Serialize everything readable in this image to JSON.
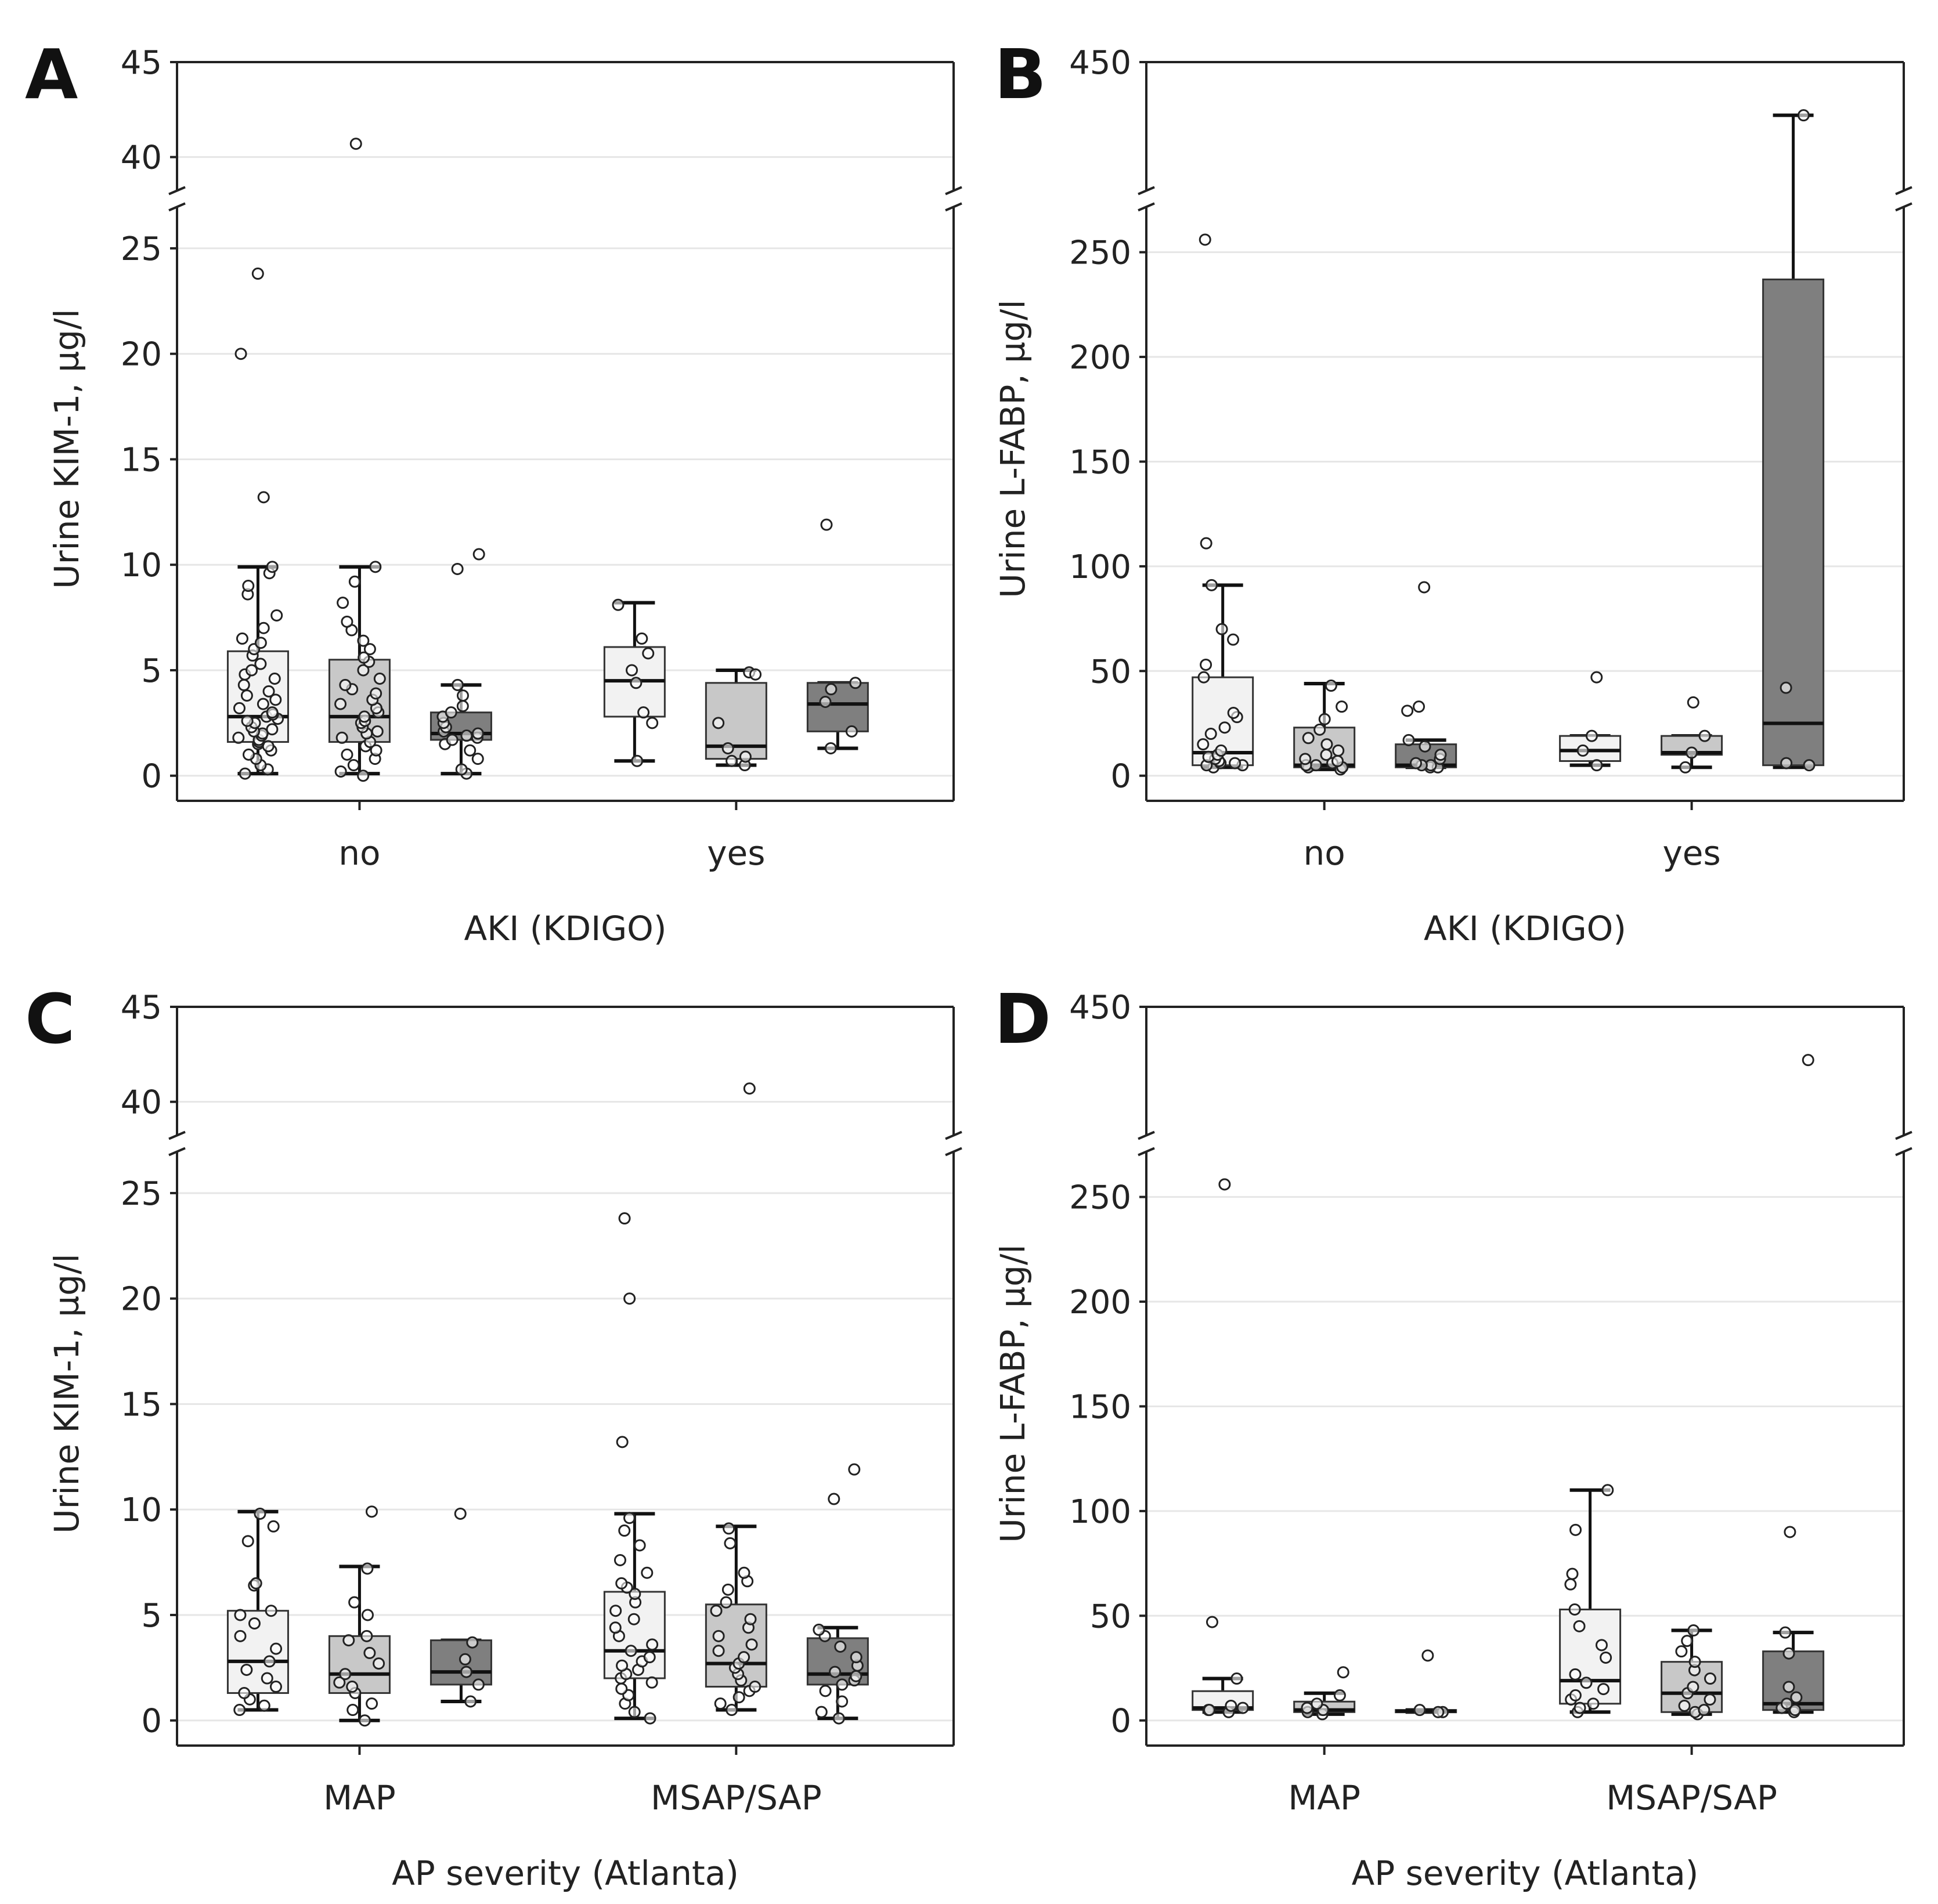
{
  "figure": {
    "panel_letters": [
      "A",
      "B",
      "C",
      "D"
    ]
  },
  "colors": {
    "low_group": "#f2f2f2",
    "mid_group": "#c8c8c8",
    "high_group": "#7f7f7f",
    "axis": "#222222",
    "grid": "#e6e6e6"
  },
  "chart_data": [
    {
      "panel": "A",
      "type": "box",
      "ylabel": "Urine KIM-1, µg/l",
      "xlabel": "AKI (KDIGO)",
      "categories": [
        "no",
        "yes"
      ],
      "axis_break": {
        "lower_max": 27,
        "upper_min": 38,
        "upper_max": 45
      },
      "yticks_lower": [
        0,
        5,
        10,
        15,
        20,
        25
      ],
      "yticks_upper": [
        40,
        45
      ],
      "boxes": [
        {
          "category": "no",
          "group": 0,
          "whisker_low": 0.1,
          "q1": 1.6,
          "median": 2.8,
          "q3": 5.9,
          "whisker_high": 9.9,
          "points": [
            0.1,
            0.3,
            0.5,
            0.8,
            1.0,
            1.2,
            1.4,
            1.5,
            1.6,
            1.7,
            1.8,
            1.9,
            2.0,
            2.1,
            2.2,
            2.3,
            2.5,
            2.6,
            2.7,
            2.8,
            2.9,
            3.0,
            3.2,
            3.4,
            3.6,
            3.8,
            4.0,
            4.3,
            4.6,
            4.8,
            5.0,
            5.3,
            5.7,
            6.0,
            6.3,
            6.5,
            7.0,
            7.6,
            8.6,
            9.0,
            9.6,
            9.9,
            13.2,
            20.0,
            23.8
          ]
        },
        {
          "category": "no",
          "group": 1,
          "whisker_low": 0.1,
          "q1": 1.6,
          "median": 2.8,
          "q3": 5.5,
          "whisker_high": 9.9,
          "points": [
            0.0,
            0.2,
            0.5,
            0.8,
            1.0,
            1.2,
            1.4,
            1.6,
            1.8,
            2.0,
            2.1,
            2.3,
            2.5,
            2.6,
            2.8,
            3.0,
            3.2,
            3.4,
            3.6,
            3.9,
            4.1,
            4.3,
            4.6,
            5.0,
            5.4,
            5.6,
            6.0,
            6.4,
            6.9,
            7.3,
            8.2,
            9.2,
            9.9,
            40.7
          ]
        },
        {
          "category": "no",
          "group": 2,
          "whisker_low": 0.1,
          "q1": 1.7,
          "median": 2.0,
          "q3": 3.0,
          "whisker_high": 4.3,
          "points": [
            0.1,
            0.3,
            0.8,
            1.2,
            1.5,
            1.7,
            1.8,
            1.9,
            2.0,
            2.1,
            2.3,
            2.5,
            2.8,
            3.0,
            3.3,
            3.8,
            4.3,
            9.8,
            10.5
          ]
        },
        {
          "category": "yes",
          "group": 0,
          "whisker_low": 0.7,
          "q1": 2.8,
          "median": 4.5,
          "q3": 6.1,
          "whisker_high": 8.2,
          "points": [
            0.7,
            2.5,
            3.0,
            4.4,
            5.0,
            5.8,
            6.5,
            8.1
          ]
        },
        {
          "category": "yes",
          "group": 1,
          "whisker_low": 0.5,
          "q1": 0.8,
          "median": 1.4,
          "q3": 4.4,
          "whisker_high": 5.0,
          "points": [
            0.5,
            0.7,
            0.9,
            1.3,
            2.5,
            4.9,
            4.8
          ]
        },
        {
          "category": "yes",
          "group": 2,
          "whisker_low": 1.3,
          "q1": 2.1,
          "median": 3.4,
          "q3": 4.4,
          "whisker_high": 4.4,
          "points": [
            1.3,
            2.1,
            3.5,
            4.1,
            4.4,
            11.9
          ]
        }
      ]
    },
    {
      "panel": "B",
      "type": "box",
      "ylabel": "Urine L-FABP, µg/l",
      "xlabel": "AKI (KDIGO)",
      "categories": [
        "no",
        "yes"
      ],
      "axis_break": {
        "lower_max": 272,
        "upper_min": 400,
        "upper_max": 450
      },
      "yticks_lower": [
        0,
        50,
        100,
        150,
        200,
        250
      ],
      "yticks_upper": [
        450
      ],
      "boxes": [
        {
          "category": "no",
          "group": 0,
          "whisker_low": 4,
          "q1": 5,
          "median": 11,
          "q3": 47,
          "whisker_high": 91,
          "points": [
            4,
            5,
            5,
            6,
            6,
            7,
            8,
            9,
            10,
            12,
            15,
            20,
            23,
            28,
            30,
            47,
            53,
            65,
            70,
            91,
            111,
            256
          ]
        },
        {
          "category": "no",
          "group": 1,
          "whisker_low": 3,
          "q1": 4,
          "median": 5,
          "q3": 23,
          "whisker_high": 44,
          "points": [
            3,
            4,
            4,
            5,
            5,
            6,
            7,
            8,
            10,
            12,
            15,
            18,
            22,
            27,
            33,
            43
          ]
        },
        {
          "category": "no",
          "group": 2,
          "whisker_low": 4,
          "q1": 4,
          "median": 5,
          "q3": 15,
          "whisker_high": 17,
          "points": [
            4,
            4,
            5,
            5,
            6,
            8,
            10,
            14,
            17,
            31,
            33,
            90
          ]
        },
        {
          "category": "yes",
          "group": 0,
          "whisker_low": 5,
          "q1": 7,
          "median": 12,
          "q3": 19,
          "whisker_high": 19,
          "points": [
            5,
            12,
            19,
            47
          ]
        },
        {
          "category": "yes",
          "group": 1,
          "whisker_low": 4,
          "q1": 10,
          "median": 11,
          "q3": 19,
          "whisker_high": 19,
          "points": [
            4,
            11,
            19,
            35
          ]
        },
        {
          "category": "yes",
          "group": 2,
          "whisker_low": 4,
          "q1": 5,
          "median": 25,
          "q3": 237,
          "whisker_high": 430,
          "points": [
            5,
            6,
            42,
            430
          ]
        }
      ]
    },
    {
      "panel": "C",
      "type": "box",
      "ylabel": "Urine KIM-1, µg/l",
      "xlabel": "AP severity (Atlanta)",
      "categories": [
        "MAP",
        "MSAP/SAP"
      ],
      "axis_break": {
        "lower_max": 27,
        "upper_min": 38,
        "upper_max": 45
      },
      "yticks_lower": [
        0,
        5,
        10,
        15,
        20,
        25
      ],
      "yticks_upper": [
        40,
        45
      ],
      "boxes": [
        {
          "category": "MAP",
          "group": 0,
          "whisker_low": 0.5,
          "q1": 1.3,
          "median": 2.8,
          "q3": 5.2,
          "whisker_high": 9.9,
          "points": [
            0.5,
            0.7,
            1.0,
            1.3,
            1.6,
            2.0,
            2.4,
            2.8,
            3.4,
            4.0,
            4.6,
            5.0,
            5.2,
            6.4,
            6.5,
            8.5,
            9.2,
            9.8
          ]
        },
        {
          "category": "MAP",
          "group": 1,
          "whisker_low": 0.0,
          "q1": 1.3,
          "median": 2.2,
          "q3": 4.0,
          "whisker_high": 7.3,
          "points": [
            0.0,
            0.5,
            0.8,
            1.3,
            1.6,
            1.8,
            2.2,
            2.7,
            3.2,
            3.8,
            4.0,
            5.0,
            5.6,
            7.2,
            9.9
          ]
        },
        {
          "category": "MAP",
          "group": 2,
          "whisker_low": 0.9,
          "q1": 1.7,
          "median": 2.3,
          "q3": 3.8,
          "whisker_high": 3.8,
          "points": [
            0.9,
            1.7,
            2.3,
            2.9,
            3.7,
            9.8
          ]
        },
        {
          "category": "MSAP/SAP",
          "group": 0,
          "whisker_low": 0.1,
          "q1": 2.0,
          "median": 3.3,
          "q3": 6.1,
          "whisker_high": 9.8,
          "points": [
            0.1,
            0.4,
            0.8,
            1.2,
            1.5,
            1.8,
            2.0,
            2.2,
            2.4,
            2.6,
            2.8,
            3.0,
            3.3,
            3.6,
            4.0,
            4.4,
            4.8,
            5.2,
            5.6,
            6.0,
            6.3,
            6.5,
            7.0,
            7.6,
            8.3,
            9.0,
            9.6,
            13.2,
            20.0,
            23.8
          ]
        },
        {
          "category": "MSAP/SAP",
          "group": 1,
          "whisker_low": 0.5,
          "q1": 1.6,
          "median": 2.7,
          "q3": 5.5,
          "whisker_high": 9.2,
          "points": [
            0.5,
            0.8,
            1.1,
            1.4,
            1.6,
            1.9,
            2.2,
            2.5,
            2.7,
            3.0,
            3.3,
            3.6,
            4.0,
            4.4,
            4.8,
            5.2,
            5.6,
            6.2,
            6.6,
            7.0,
            8.4,
            9.1,
            40.7
          ]
        },
        {
          "category": "MSAP/SAP",
          "group": 2,
          "whisker_low": 0.1,
          "q1": 1.7,
          "median": 2.2,
          "q3": 3.9,
          "whisker_high": 4.4,
          "points": [
            0.1,
            0.4,
            0.9,
            1.4,
            1.7,
            1.9,
            2.1,
            2.3,
            2.6,
            3.0,
            3.5,
            4.0,
            4.3,
            10.5,
            11.9
          ]
        }
      ]
    },
    {
      "panel": "D",
      "type": "box",
      "ylabel": "Urine L-FABP, µg/l",
      "xlabel": "AP severity (Atlanta)",
      "categories": [
        "MAP",
        "MSAP/SAP"
      ],
      "axis_break": {
        "lower_max": 272,
        "upper_min": 400,
        "upper_max": 450
      },
      "yticks_lower": [
        0,
        50,
        100,
        150,
        200,
        250
      ],
      "yticks_upper": [
        450
      ],
      "boxes": [
        {
          "category": "MAP",
          "group": 0,
          "whisker_low": 4,
          "q1": 5,
          "median": 6,
          "q3": 14,
          "whisker_high": 20,
          "points": [
            4,
            5,
            5,
            6,
            7,
            20,
            47,
            256
          ]
        },
        {
          "category": "MAP",
          "group": 1,
          "whisker_low": 3,
          "q1": 4,
          "median": 5,
          "q3": 9,
          "whisker_high": 13,
          "points": [
            3,
            4,
            5,
            6,
            8,
            12,
            23
          ]
        },
        {
          "category": "MAP",
          "group": 2,
          "whisker_low": 4,
          "q1": 4,
          "median": 4.5,
          "q3": 5,
          "whisker_high": 5,
          "points": [
            4,
            4,
            5,
            31
          ]
        },
        {
          "category": "MSAP/SAP",
          "group": 0,
          "whisker_low": 4,
          "q1": 8,
          "median": 19,
          "q3": 53,
          "whisker_high": 110,
          "points": [
            4,
            6,
            8,
            10,
            12,
            15,
            18,
            22,
            30,
            36,
            45,
            53,
            65,
            70,
            91,
            110
          ]
        },
        {
          "category": "MSAP/SAP",
          "group": 1,
          "whisker_low": 3,
          "q1": 4,
          "median": 13,
          "q3": 28,
          "whisker_high": 43,
          "points": [
            3,
            4,
            5,
            7,
            10,
            13,
            16,
            20,
            24,
            28,
            33,
            38,
            43
          ]
        },
        {
          "category": "MSAP/SAP",
          "group": 2,
          "whisker_low": 4,
          "q1": 5,
          "median": 8,
          "q3": 33,
          "whisker_high": 42,
          "points": [
            4,
            5,
            6,
            8,
            11,
            16,
            32,
            42,
            90,
            430
          ]
        }
      ]
    }
  ]
}
